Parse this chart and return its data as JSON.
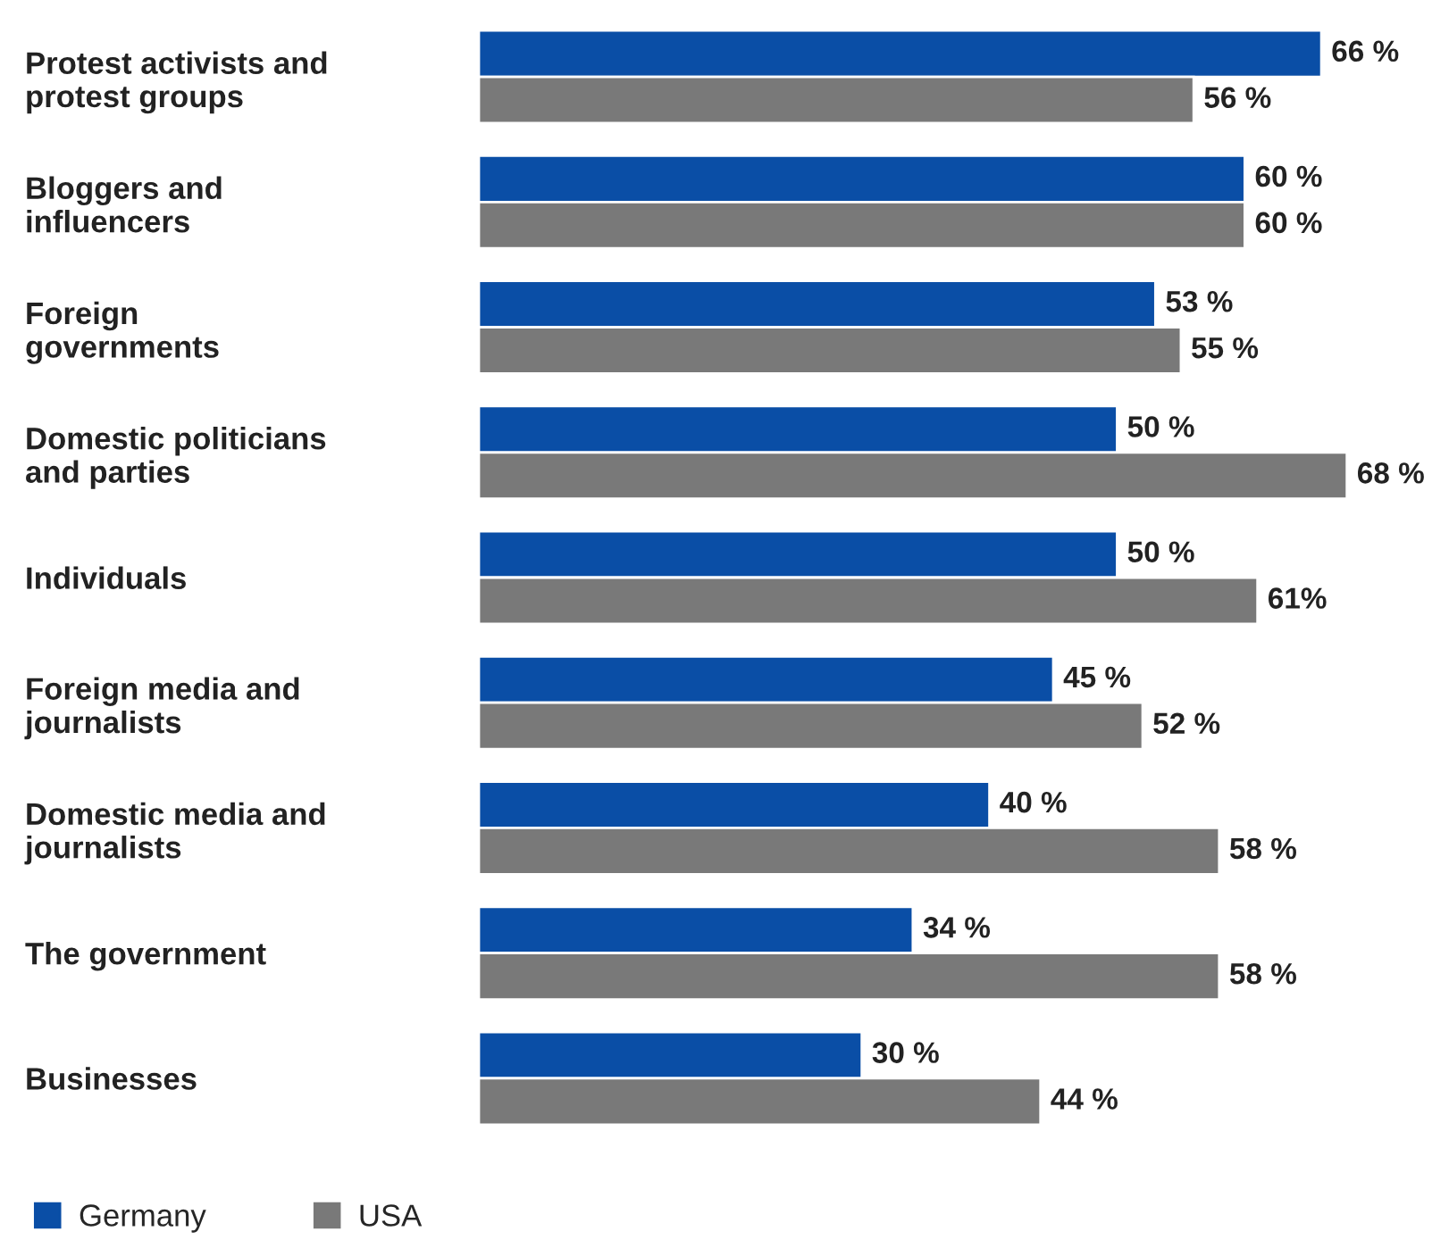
{
  "chart_data": {
    "type": "bar",
    "orientation": "horizontal",
    "legend": "bottom left",
    "grid": false,
    "tick_labels": "y",
    "categories": [
      "Protest activists and\nprotest groups",
      "Bloggers and\ninfluencers",
      "Foreign\ngovernments",
      "Domestic politicians\nand parties",
      "Individuals",
      "Foreign media and\njournalists",
      "Domestic media and\njournalists",
      "The government",
      "Businesses"
    ],
    "series": [
      {
        "name": "Germany",
        "color": "#0a4ea6",
        "values": [
          66,
          60,
          53,
          50,
          50,
          45,
          40,
          34,
          30
        ],
        "value_labels": [
          "66 %",
          "60 %",
          "53 %",
          "50 %",
          "50 %",
          "45 %",
          "40 %",
          "34 %",
          "30 %"
        ]
      },
      {
        "name": "USA",
        "color": "#797979",
        "values": [
          56,
          60,
          55,
          68,
          61,
          52,
          58,
          58,
          44
        ],
        "value_labels": [
          "56 %",
          "60 %",
          "55 %",
          "68 %",
          "61%",
          "52 %",
          "58 %",
          "58 %",
          "44 %"
        ]
      }
    ]
  }
}
